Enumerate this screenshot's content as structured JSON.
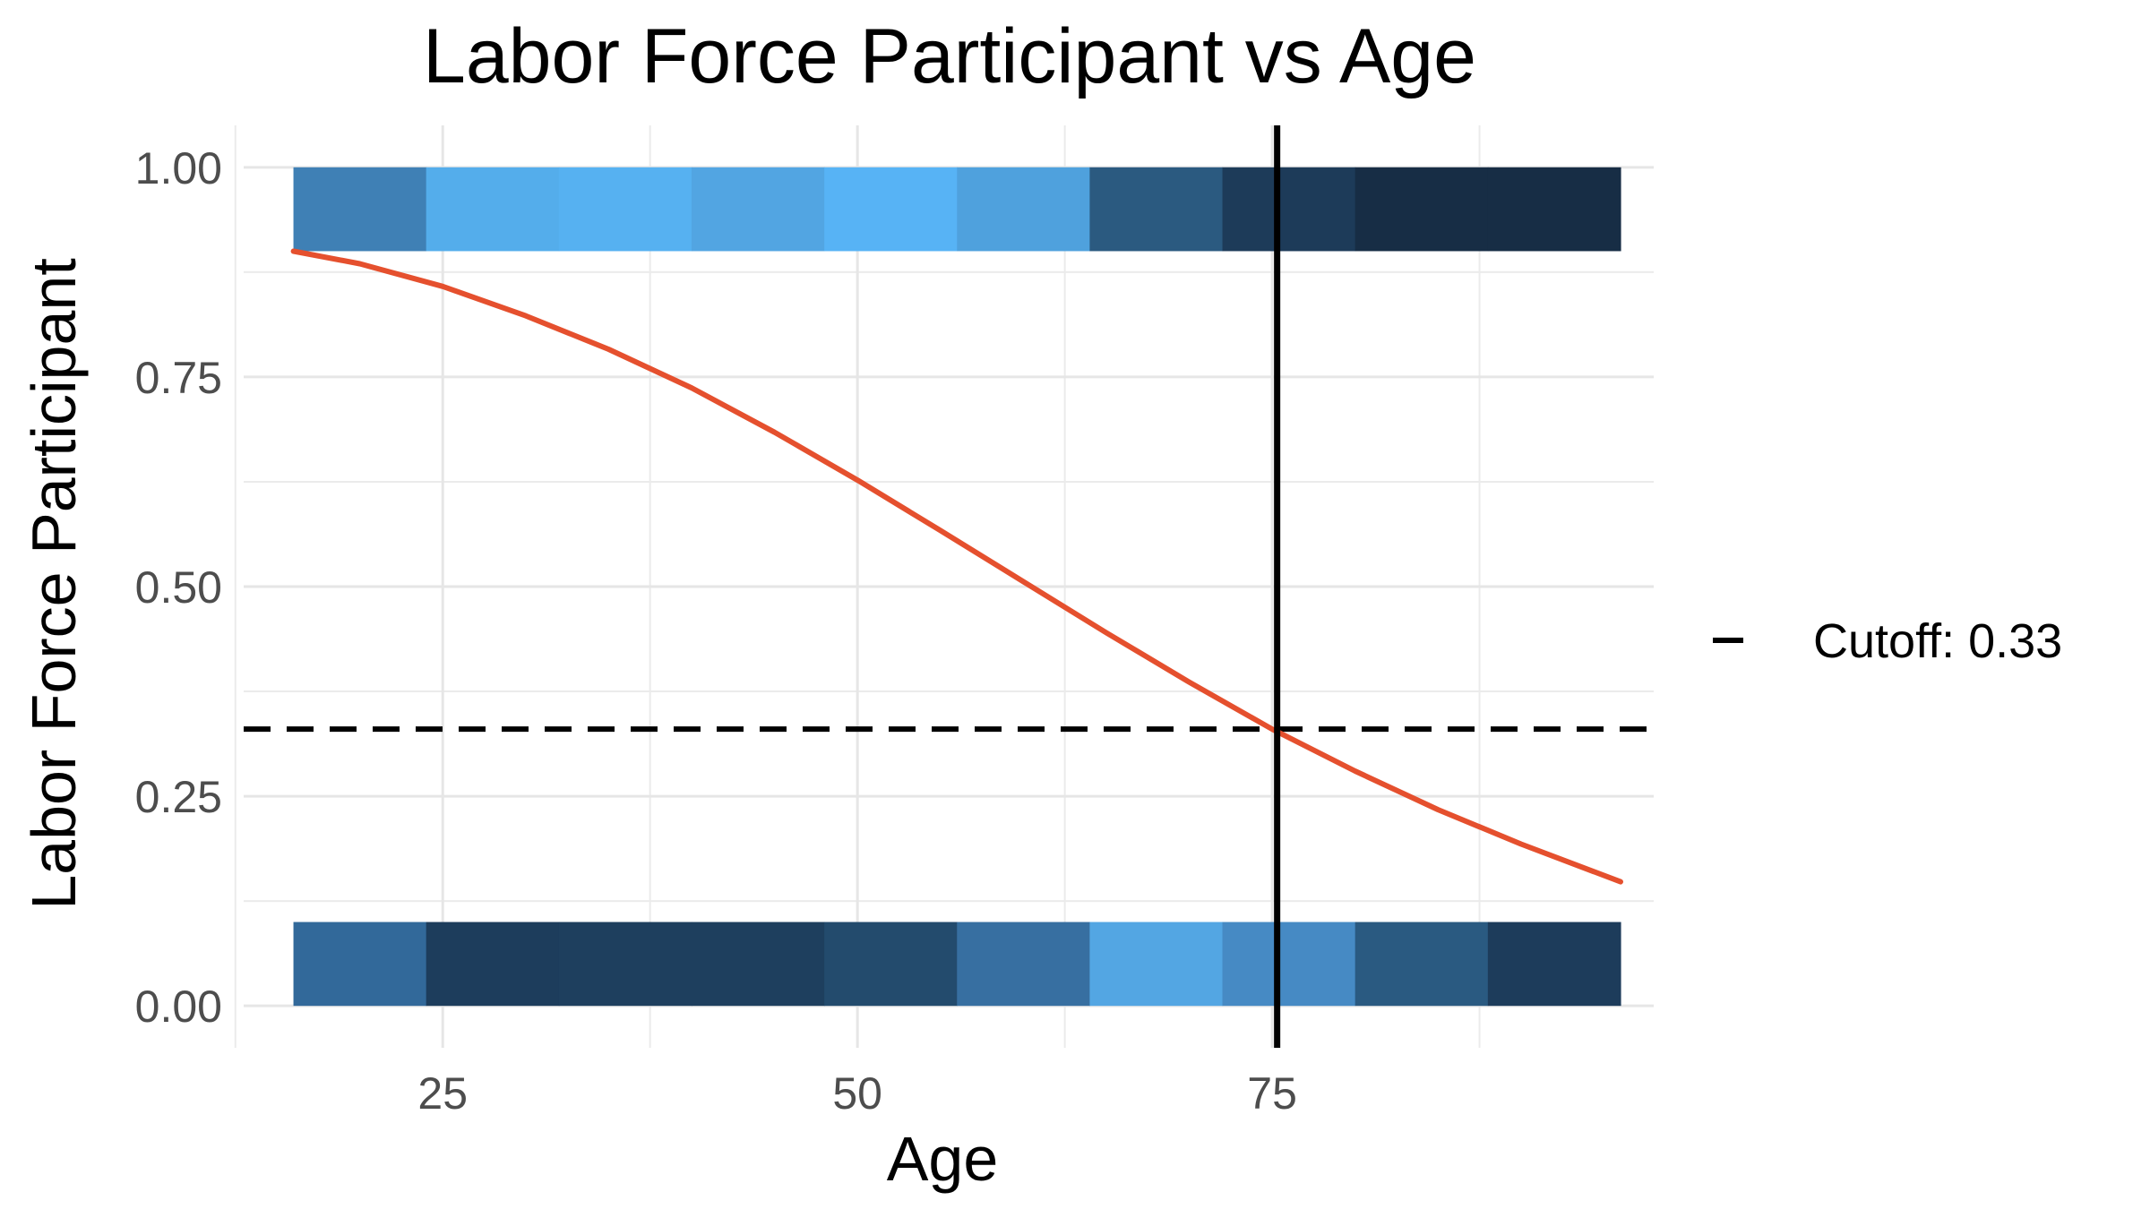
{
  "chart_data": {
    "type": "heatmap",
    "title": "Labor Force Participant vs Age",
    "xlabel": "Age",
    "ylabel": "Labor Force Participant",
    "xlim": [
      13,
      98
    ],
    "ylim": [
      -0.05,
      1.05
    ],
    "x_ticks": [
      25,
      50,
      75
    ],
    "x_tick_labels": [
      "25",
      "50",
      "75"
    ],
    "y_ticks": [
      0,
      0.25,
      0.5,
      0.75,
      1
    ],
    "y_tick_labels": [
      "0.00",
      "0.25",
      "0.50",
      "0.75",
      "1.00"
    ],
    "grid": true,
    "bins": {
      "x_edges": [
        16,
        24,
        32,
        40,
        48,
        56,
        64,
        72,
        80,
        88,
        96
      ],
      "rows": [
        {
          "y_range": [
            0.9,
            1.0
          ],
          "fill_colors": [
            "#3f80b5",
            "#54adeb",
            "#56b1f1",
            "#52a5e2",
            "#57b3f5",
            "#4fa1dd",
            "#2b5a80",
            "#1d3b59",
            "#172d45",
            "#172d45"
          ]
        },
        {
          "y_range": [
            0.0,
            0.1
          ],
          "fill_colors": [
            "#32699a",
            "#1d3d5c",
            "#1e3f5e",
            "#1e3f5e",
            "#234b6d",
            "#376fa1",
            "#53a6e3",
            "#468ac4",
            "#2a5a81",
            "#1d3c5b"
          ]
        }
      ]
    },
    "series": [
      {
        "type": "line",
        "color": "#e5502e",
        "x": [
          16,
          20,
          25,
          30,
          35,
          40,
          45,
          50,
          55,
          60,
          65,
          70,
          75,
          80,
          85,
          90,
          96
        ],
        "y": [
          0.9,
          0.885,
          0.858,
          0.823,
          0.783,
          0.737,
          0.684,
          0.627,
          0.567,
          0.506,
          0.445,
          0.386,
          0.33,
          0.28,
          0.234,
          0.193,
          0.148
        ]
      }
    ],
    "reference_lines": {
      "vertical": {
        "x": 75.3,
        "color": "#000000",
        "style": "solid"
      },
      "horizontal": {
        "y": 0.33,
        "color": "#000000",
        "style": "dashed"
      }
    },
    "legend": {
      "position": "right",
      "entries": [
        {
          "label": "Cutoff: 0.33",
          "style": "dashed",
          "color": "#000000"
        }
      ]
    }
  }
}
